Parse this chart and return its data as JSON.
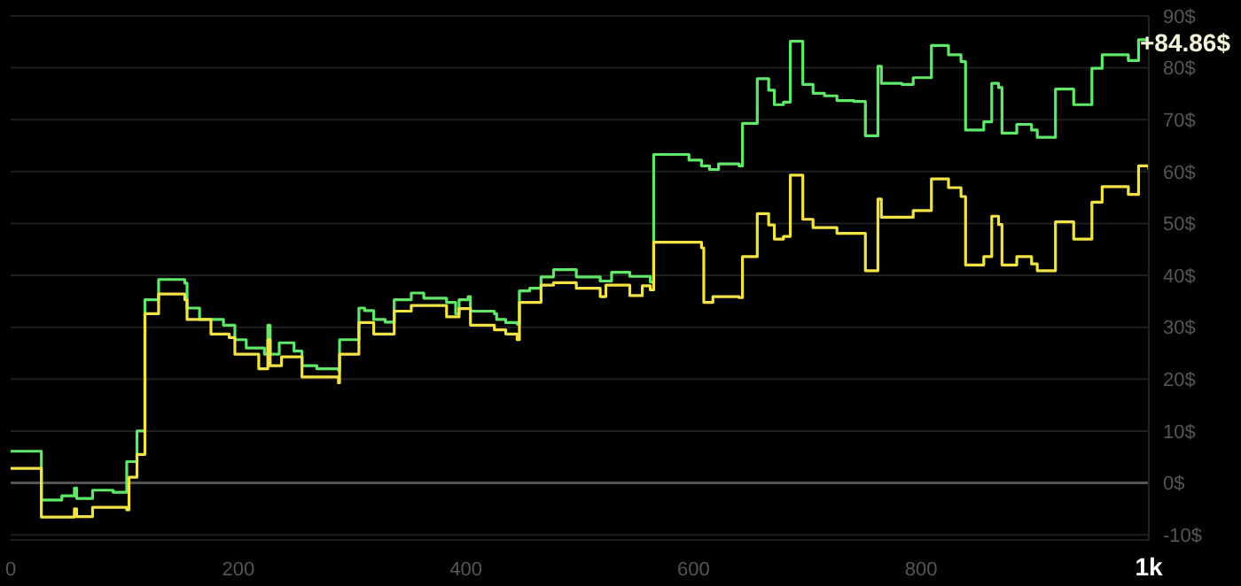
{
  "chart_data": {
    "type": "step",
    "xlim": [
      0,
      1000
    ],
    "xticks": [
      0,
      200,
      400,
      600,
      {
        "value": 1000,
        "label": "1k"
      },
      800
    ],
    "ylim": [
      -11,
      90
    ],
    "yticks": [
      {
        "value": -10,
        "label": "-10$"
      },
      {
        "value": 0,
        "label": "0$"
      },
      {
        "value": 10,
        "label": "10$"
      },
      {
        "value": 20,
        "label": "20$"
      },
      {
        "value": 30,
        "label": "30$"
      },
      {
        "value": 40,
        "label": "40$"
      },
      {
        "value": 50,
        "label": "50$"
      },
      {
        "value": 60,
        "label": "60$"
      },
      {
        "value": 70,
        "label": "70$"
      },
      {
        "value": 80,
        "label": "80$"
      },
      {
        "value": 90,
        "label": "90$"
      }
    ],
    "grid": "y",
    "ref_lines": [
      {
        "axis": "y",
        "value": 0,
        "color": "#555555"
      }
    ],
    "annotations": [
      {
        "text": "+84.86$",
        "x": 1000,
        "y": 84.86
      }
    ],
    "series": [
      {
        "color": "#5fe86a",
        "x": [
          0,
          27,
          45,
          56,
          58,
          72,
          90,
          102,
          111,
          118,
          130,
          153,
          155,
          166,
          187,
          197,
          207,
          223,
          226,
          228,
          236,
          249,
          256,
          269,
          288,
          289,
          306,
          311,
          319,
          329,
          337,
          352,
          363,
          383,
          391,
          394,
          402,
          404,
          425,
          427,
          435,
          445,
          447,
          456,
          466,
          477,
          497,
          518,
          528,
          544,
          562,
          565,
          596,
          607,
          614,
          622,
          640,
          643,
          656,
          666,
          671,
          679,
          685,
          696,
          705,
          715,
          726,
          741,
          751,
          762,
          765,
          783,
          793,
          809,
          824,
          835,
          839,
          855,
          862,
          868,
          871,
          884,
          897,
          902,
          918,
          934,
          950,
          959,
          982,
          991,
          1000
        ],
        "values": [
          6.1,
          -3.3,
          -2.5,
          -1,
          -3,
          -1.4,
          -1.8,
          4.1,
          10,
          35.3,
          39.2,
          38.5,
          33.7,
          31.5,
          30.4,
          27.6,
          26,
          24.8,
          30.4,
          24.8,
          27,
          25.4,
          22.6,
          22,
          21.7,
          27.6,
          33.7,
          33.2,
          31.5,
          31,
          35.3,
          36.6,
          35.6,
          34.8,
          32.6,
          35.3,
          35.9,
          33.1,
          32.6,
          31.5,
          30.9,
          30.6,
          37,
          37.5,
          39.7,
          41.1,
          39.7,
          38.9,
          40.6,
          39.8,
          38.7,
          63.3,
          62.2,
          61.1,
          60.4,
          61.5,
          61.1,
          69.3,
          77.9,
          75.7,
          72.9,
          73.4,
          85.1,
          76.8,
          75.1,
          74.6,
          73.7,
          73.5,
          66.9,
          80.3,
          77,
          76.8,
          78.1,
          84.3,
          82.5,
          81.2,
          68,
          69.6,
          77,
          76.2,
          67.4,
          69.1,
          68,
          66.6,
          75.9,
          72.9,
          79.9,
          82.5,
          81.4,
          85.4,
          84.86
        ]
      },
      {
        "color": "#f2e246",
        "x": [
          0,
          27,
          56,
          58,
          72,
          102,
          104,
          111,
          118,
          130,
          153,
          155,
          176,
          192,
          197,
          218,
          226,
          228,
          238,
          256,
          288,
          289,
          306,
          319,
          337,
          352,
          383,
          394,
          404,
          425,
          435,
          445,
          447,
          466,
          477,
          497,
          518,
          523,
          544,
          555,
          562,
          565,
          607,
          609,
          617,
          640,
          643,
          656,
          666,
          671,
          679,
          685,
          696,
          705,
          726,
          741,
          751,
          762,
          765,
          793,
          809,
          824,
          835,
          839,
          855,
          862,
          868,
          871,
          884,
          897,
          902,
          918,
          934,
          950,
          959,
          982,
          991,
          1000
        ],
        "values": [
          2.8,
          -6.6,
          -5,
          -6.5,
          -4.7,
          -5.2,
          1.1,
          5.5,
          32.6,
          36.4,
          35.3,
          31.5,
          28.7,
          28,
          24.8,
          22,
          27.6,
          22.6,
          24.3,
          20.4,
          19.3,
          24.8,
          30.9,
          28.7,
          33.1,
          34.2,
          32,
          33.6,
          30.4,
          29.5,
          28.7,
          27.6,
          34.8,
          38.1,
          38.6,
          37.5,
          35.9,
          38.1,
          36.1,
          38,
          37.2,
          46.4,
          45.3,
          34.8,
          35.9,
          35.7,
          43.6,
          51.9,
          49.7,
          47,
          47.5,
          59.3,
          50.8,
          49.2,
          48.1,
          48.1,
          40.9,
          54.7,
          51.2,
          52.5,
          58.6,
          56.9,
          55.2,
          42,
          43.6,
          51.4,
          49.8,
          42,
          43.6,
          42.2,
          40.9,
          50.3,
          47,
          54.1,
          57.1,
          55.6,
          61.1,
          60.4
        ]
      }
    ]
  }
}
